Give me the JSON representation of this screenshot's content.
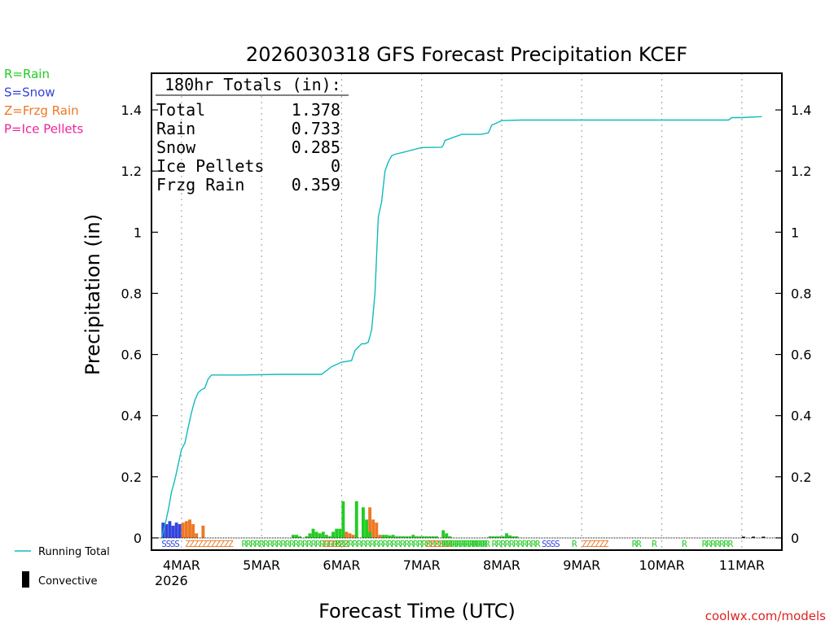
{
  "chart_data": {
    "type": "line",
    "title": "2026030318 GFS Forecast Precipitation KCEF",
    "xlabel": "Forecast Time (UTC)",
    "ylabel": "Precipitation (in)",
    "ylim": [
      -0.04,
      1.52
    ],
    "xlim_hours": [
      -3,
      186
    ],
    "y_ticks": [
      0,
      0.2,
      0.4,
      0.6,
      0.8,
      1,
      1.2,
      1.4
    ],
    "y_tick_labels": [
      "0",
      "0.2",
      "0.4",
      "0.6",
      "0.8",
      "1",
      "1.2",
      "1.4"
    ],
    "x_ticks": [
      {
        "hour": 6,
        "label": "4MAR"
      },
      {
        "hour": 30,
        "label": "5MAR"
      },
      {
        "hour": 54,
        "label": "6MAR"
      },
      {
        "hour": 78,
        "label": "7MAR"
      },
      {
        "hour": 102,
        "label": "8MAR"
      },
      {
        "hour": 126,
        "label": "9MAR"
      },
      {
        "hour": 150,
        "label": "10MAR"
      },
      {
        "hour": 174,
        "label": "11MAR"
      }
    ],
    "year_label": "2026",
    "grid": true,
    "legend": {
      "types": [
        {
          "label": "R=Rain",
          "color": "#22cc22"
        },
        {
          "label": "S=Snow",
          "color": "#3344dd"
        },
        {
          "label": "Z=Frzg Rain",
          "color": "#ee7722"
        },
        {
          "label": "P=Ice Pellets",
          "color": "#ee2299"
        }
      ],
      "running_total_label": "Running Total",
      "convective_label": "Convective"
    },
    "totals": {
      "title": "180hr Totals (in):",
      "rows": [
        {
          "label": "Total",
          "value": "1.378"
        },
        {
          "label": "Rain",
          "value": "0.733"
        },
        {
          "label": "Snow",
          "value": "0.285"
        },
        {
          "label": "Ice Pellets",
          "value": "0"
        },
        {
          "label": "Frzg Rain",
          "value": "0.359"
        }
      ]
    },
    "series": [
      {
        "name": "Running Total",
        "color": "#11bbbb",
        "x": [
          0,
          1,
          2,
          3,
          4,
          5,
          6,
          7,
          8,
          9,
          10,
          11,
          12,
          13,
          14,
          15,
          18,
          24,
          36,
          42,
          48,
          51,
          54,
          57,
          58,
          60,
          61,
          62,
          63,
          64,
          65,
          66,
          67,
          68,
          69,
          70,
          72,
          78,
          84,
          84.5,
          85,
          90,
          96,
          98,
          99,
          102,
          108,
          132,
          168,
          170,
          171,
          174,
          180
        ],
        "values": [
          0,
          0.04,
          0.09,
          0.15,
          0.19,
          0.24,
          0.29,
          0.31,
          0.36,
          0.41,
          0.45,
          0.475,
          0.485,
          0.49,
          0.52,
          0.533,
          0.533,
          0.533,
          0.535,
          0.535,
          0.535,
          0.56,
          0.575,
          0.58,
          0.613,
          0.635,
          0.635,
          0.64,
          0.68,
          0.8,
          1.05,
          1.1,
          1.2,
          1.23,
          1.25,
          1.255,
          1.26,
          1.277,
          1.278,
          1.285,
          1.3,
          1.32,
          1.32,
          1.325,
          1.35,
          1.365,
          1.367,
          1.367,
          1.367,
          1.367,
          1.375,
          1.375,
          1.378
        ]
      },
      {
        "name": "Snow",
        "color": "#3344dd",
        "x": [
          0,
          1,
          2,
          3,
          4,
          5
        ],
        "values": [
          0.05,
          0.045,
          0.055,
          0.04,
          0.05,
          0.045
        ]
      },
      {
        "name": "Frzg Rain",
        "color": "#ee7722",
        "x": [
          6,
          7,
          8,
          9,
          10,
          12,
          54,
          55,
          56,
          57,
          62,
          63,
          64,
          65
        ],
        "values": [
          0.05,
          0.055,
          0.06,
          0.045,
          0.015,
          0.04,
          0.03,
          0.02,
          0.015,
          0.01,
          0.1,
          0.06,
          0.05,
          0.01
        ]
      },
      {
        "name": "Rain",
        "color": "#22cc22",
        "x": [
          39,
          40,
          41,
          43,
          44,
          45,
          46,
          47,
          48,
          49,
          50,
          51,
          52,
          53,
          54,
          58,
          60,
          61,
          62,
          66,
          67,
          68,
          69,
          70,
          71,
          72,
          73,
          74,
          75,
          76,
          77,
          78,
          79,
          80,
          81,
          82,
          84,
          85,
          86,
          98,
          99,
          100,
          101,
          102,
          103,
          104,
          105,
          106
        ],
        "values": [
          0.01,
          0.01,
          0.005,
          0.005,
          0.015,
          0.03,
          0.02,
          0.015,
          0.02,
          0.01,
          0.005,
          0.02,
          0.03,
          0.03,
          0.12,
          0.12,
          0.1,
          0.06,
          0.02,
          0.01,
          0.01,
          0.008,
          0.01,
          0.005,
          0.005,
          0.005,
          0.005,
          0.005,
          0.01,
          0.005,
          0.005,
          0.005,
          0.005,
          0.005,
          0.005,
          0.005,
          0.025,
          0.015,
          0.005,
          0.005,
          0.005,
          0.005,
          0.005,
          0.005,
          0.015,
          0.008,
          0.005,
          0.005
        ]
      },
      {
        "name": "Convective",
        "color": "#000000",
        "x": [
          174,
          177,
          180
        ],
        "values": [
          0.004,
          0.004,
          0.004
        ]
      }
    ],
    "type_strip": [
      {
        "x": 0,
        "text": "SSSS",
        "color": "#3344dd"
      },
      {
        "x": 7,
        "text": "ZZZZZZZZZZZ",
        "color": "#ee7722"
      },
      {
        "x": 24,
        "text": "RRRRRRRRRRRRRRRRRRRRRR",
        "color": "#22cc22"
      },
      {
        "x": 48,
        "text": "ZZZZZZ",
        "color": "#ee7722"
      },
      {
        "x": 52,
        "text": "RRRRRRRRRRRRRRRRRRRRRRRRRRRRRRRRRRR",
        "color": "#22cc22"
      },
      {
        "x": 79,
        "text": "ZZZZZZ",
        "color": "#ee7722"
      },
      {
        "x": 84,
        "text": "RRRRRRRR",
        "color": "#22cc22"
      },
      {
        "x": 93,
        "text": "RRRR",
        "color": "#22cc22"
      },
      {
        "x": 99,
        "text": "RRRRRRRRRRR",
        "color": "#22cc22"
      },
      {
        "x": 114,
        "text": "SSSS",
        "color": "#3344dd"
      },
      {
        "x": 123,
        "text": "R",
        "color": "#22cc22"
      },
      {
        "x": 126,
        "text": "ZZZZZZ",
        "color": "#ee7722"
      },
      {
        "x": 141,
        "text": "RR",
        "color": "#22cc22"
      },
      {
        "x": 147,
        "text": "R",
        "color": "#22cc22"
      },
      {
        "x": 156,
        "text": "R",
        "color": "#22cc22"
      },
      {
        "x": 162,
        "text": "RRRRRRR",
        "color": "#22cc22"
      }
    ]
  },
  "watermark": "coolwx.com/models"
}
